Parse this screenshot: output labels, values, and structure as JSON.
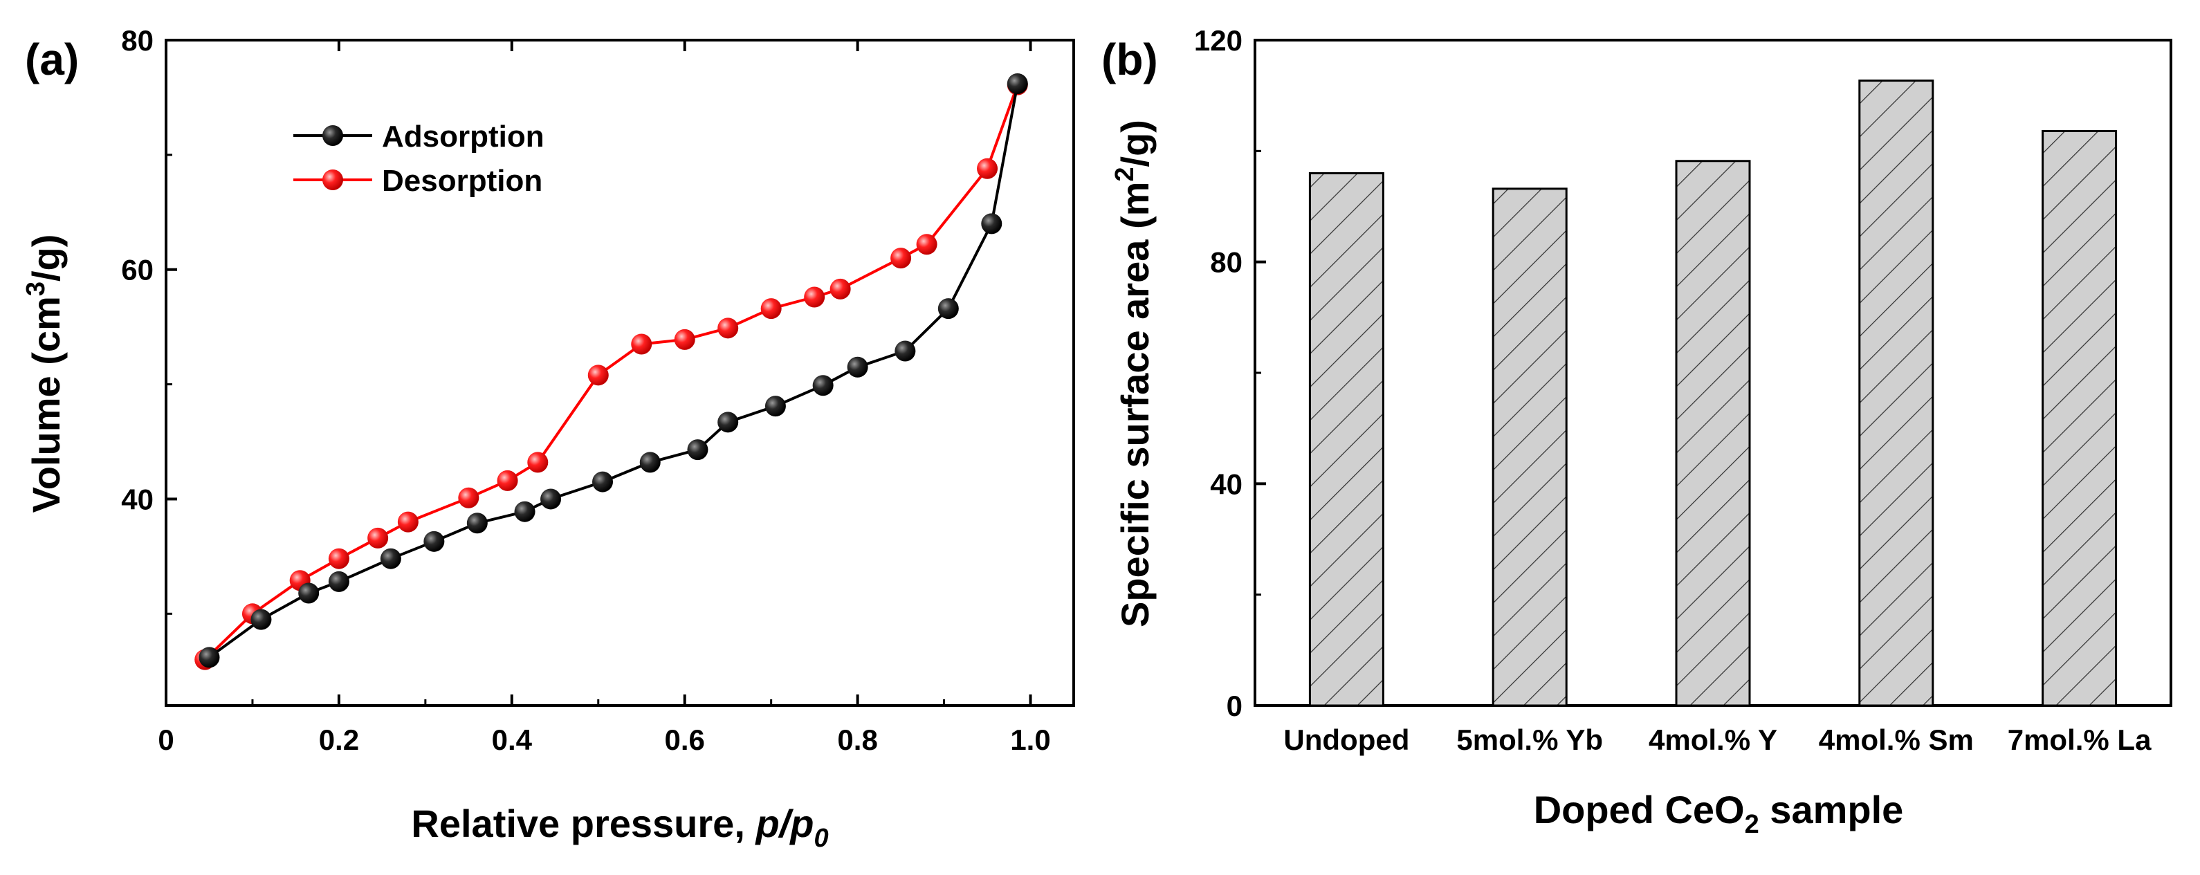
{
  "chart_data": [
    {
      "panel_label": "(a)",
      "type": "line",
      "xlabel": {
        "prefix": "Relative pressure, ",
        "main": "p/p",
        "sub": "0"
      },
      "ylabel": {
        "prefix": "Volume (cm",
        "sup": "3",
        "suffix": "/g)"
      },
      "xlim": [
        0,
        1.05
      ],
      "ylim": [
        22,
        80
      ],
      "xticks": [
        0,
        0.2,
        0.4,
        0.6,
        0.8,
        1.0
      ],
      "xtick_labels": [
        "0",
        "0.2",
        "0.4",
        "0.6",
        "0.8",
        "1.0"
      ],
      "yticks": [
        40,
        60,
        80
      ],
      "ytick_labels": [
        "40",
        "60",
        "80"
      ],
      "legend_position": "top-left",
      "series": [
        {
          "name": "Adsorption",
          "color": "#000000",
          "x": [
            0.05,
            0.11,
            0.165,
            0.2,
            0.26,
            0.31,
            0.36,
            0.415,
            0.445,
            0.505,
            0.56,
            0.615,
            0.65,
            0.705,
            0.76,
            0.8,
            0.855,
            0.905,
            0.955,
            0.985
          ],
          "y": [
            26.2,
            29.5,
            31.8,
            32.8,
            34.8,
            36.3,
            37.9,
            38.9,
            40.0,
            41.5,
            43.2,
            44.3,
            46.7,
            48.1,
            49.9,
            51.5,
            52.9,
            56.6,
            64.0,
            76.2
          ]
        },
        {
          "name": "Desorption",
          "color": "#ff0000",
          "x": [
            0.045,
            0.1,
            0.155,
            0.2,
            0.245,
            0.28,
            0.35,
            0.395,
            0.43,
            0.5,
            0.55,
            0.6,
            0.65,
            0.7,
            0.75,
            0.78,
            0.85,
            0.88,
            0.95,
            0.985
          ],
          "y": [
            26.0,
            30.0,
            32.9,
            34.8,
            36.6,
            38.0,
            40.1,
            41.6,
            43.2,
            50.8,
            53.5,
            53.9,
            54.9,
            56.6,
            57.6,
            58.3,
            61.0,
            62.2,
            68.8,
            76.1
          ]
        }
      ]
    },
    {
      "panel_label": "(b)",
      "type": "bar",
      "xlabel": {
        "prefix": "Doped CeO",
        "sub": "2",
        "suffix": " sample"
      },
      "ylabel": {
        "prefix": "Specific surface area (m",
        "sup": "2",
        "suffix": "/g)"
      },
      "categories": [
        "Undoped",
        "5mol.% Yb",
        "4mol.% Y",
        "4mol.% Sm",
        "7mol.% La"
      ],
      "values": [
        96.0,
        93.2,
        98.2,
        112.7,
        103.6
      ],
      "ylim": [
        0,
        120
      ],
      "yticks": [
        0,
        40,
        80,
        120
      ],
      "ytick_labels": [
        "0",
        "40",
        "80",
        "120"
      ],
      "bar_fill": "#d0d0d0",
      "hatch": "diagonal"
    }
  ]
}
